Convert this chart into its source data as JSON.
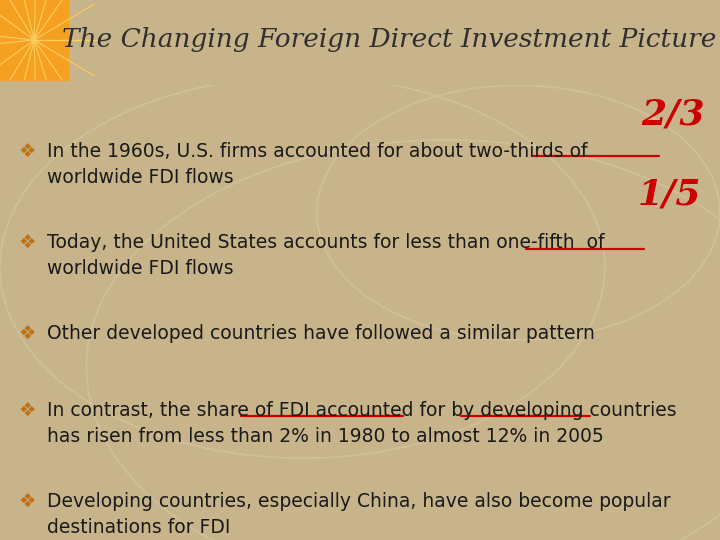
{
  "title": "The Changing Foreign Direct Investment Picture",
  "title_color": "#2F2F2F",
  "title_bg_color": "#FAFAD2",
  "title_font_size": 19,
  "header_orange_color": "#F5A020",
  "body_bg_color": "#C8B48A",
  "separator_color": "#9A7040",
  "bullet_color": "#C07010",
  "text_color": "#1A1A1A",
  "annotation_color": "#CC0000",
  "underline_color": "#CC0000",
  "body_font_size": 13.5,
  "bullet_font_size": 14,
  "bullets": [
    "In the 1960s, U.S. firms accounted for about two-thirds of\nworldwide FDI flows",
    "Today, the United States accounts for less than one-fifth  of\nworldwide FDI flows",
    "Other developed countries have followed a similar pattern",
    "In contrast, the share of FDI accounted for by developing countries\nhas risen from less than 2% in 1980 to almost 12% in 2005",
    "Developing countries, especially China, have also become popular\ndestinations for FDI"
  ],
  "annotation_2_3": "2/3",
  "annotation_1_5": "1/5",
  "circle_lines_color": "#D8C8A8",
  "fig_width": 7.2,
  "fig_height": 5.4,
  "dpi": 100
}
